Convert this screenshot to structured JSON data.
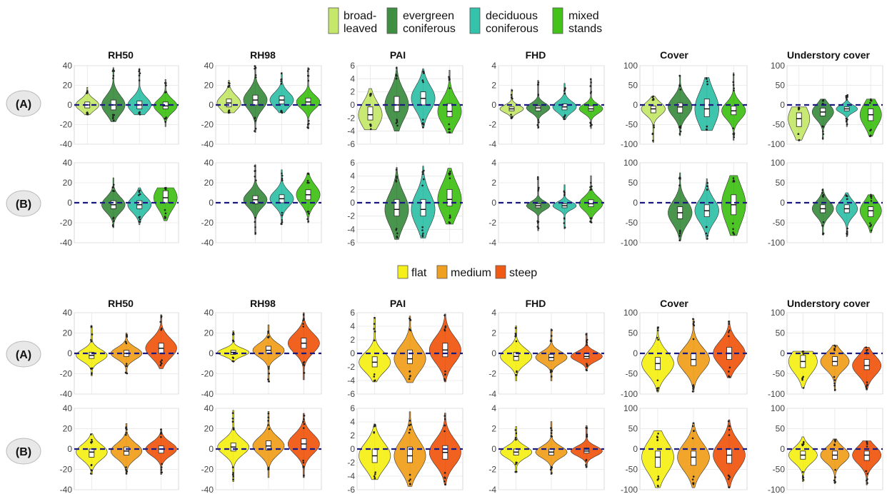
{
  "legend_top": {
    "items": [
      {
        "lines": [
          "broad-",
          "leaved"
        ],
        "color": "#c5e86c"
      },
      {
        "lines": [
          "evergreen",
          "coniferous"
        ],
        "color": "#3f8f43"
      },
      {
        "lines": [
          "deciduous",
          "coniferous"
        ],
        "color": "#35c2aa"
      },
      {
        "lines": [
          "mixed",
          "stands"
        ],
        "color": "#43c21a"
      }
    ]
  },
  "legend_bottom": {
    "items": [
      {
        "label": "flat",
        "color": "#f5f01a"
      },
      {
        "label": "medium",
        "color": "#f0a020"
      },
      {
        "label": "steep",
        "color": "#f05a14"
      }
    ]
  },
  "row_labels": [
    "(A)",
    "(B)",
    "(A)",
    "(B)"
  ],
  "metrics": [
    {
      "title": "RH50",
      "ticks": [
        "40",
        "20",
        "0",
        "-20",
        "-40"
      ],
      "ylim": [
        -40,
        40
      ]
    },
    {
      "title": "RH98",
      "ticks": [
        "40",
        "20",
        "0",
        "-20",
        "-40"
      ],
      "ylim": [
        -40,
        40
      ]
    },
    {
      "title": "PAI",
      "ticks": [
        "6",
        "4",
        "2",
        "0",
        "-2",
        "-4",
        "-6"
      ],
      "ylim": [
        -6,
        6
      ]
    },
    {
      "title": "FHD",
      "ticks": [
        "4",
        "2",
        "0",
        "-2",
        "-4"
      ],
      "ylim": [
        -4,
        4
      ]
    },
    {
      "title": "Cover",
      "ticks": [
        "100",
        "50",
        "0",
        "-50",
        "-100"
      ],
      "ylim": [
        -100,
        100
      ]
    },
    {
      "title": "Understory cover",
      "ticks": [
        "100",
        "50",
        "0",
        "-50",
        "-100"
      ],
      "ylim": [
        -100,
        100
      ]
    }
  ],
  "colors": {
    "broadleaved": "#c5e86c",
    "evergreen": "#3f8f43",
    "deciduous": "#35c2aa",
    "mixed": "#43c21a",
    "flat": "#f5f01a",
    "medium": "#f0a020",
    "steep": "#f05a14",
    "zero_line": "#1a1a7a",
    "grid": "#e6e6e6",
    "frame": "#cfcfcf"
  },
  "chart_data": {
    "type": "violin",
    "note_groups": "forest type (top) and slope class (bottom)",
    "panels": [
      {
        "row": 0,
        "group_set": "forest",
        "metrics": [
          [
            {
              "g": "broadleaved",
              "median": 0,
              "q1": -3,
              "q3": 3,
              "min": -10,
              "max": 18
            },
            {
              "g": "evergreen",
              "median": 0,
              "q1": -5,
              "q3": 5,
              "min": -17,
              "max": 38
            },
            {
              "g": "deciduous",
              "median": 0,
              "q1": -4,
              "q3": 4,
              "min": -10,
              "max": 37
            },
            {
              "g": "mixed",
              "median": -1,
              "q1": -4,
              "q3": 3,
              "min": -22,
              "max": 26
            }
          ],
          [
            {
              "g": "broadleaved",
              "median": 2,
              "q1": -2,
              "q3": 6,
              "min": -8,
              "max": 25
            },
            {
              "g": "evergreen",
              "median": 5,
              "q1": 0,
              "q3": 10,
              "min": -28,
              "max": 40
            },
            {
              "g": "deciduous",
              "median": 5,
              "q1": 1,
              "q3": 9,
              "min": -8,
              "max": 33
            },
            {
              "g": "mixed",
              "median": 3,
              "q1": 0,
              "q3": 7,
              "min": -24,
              "max": 38
            }
          ],
          [
            {
              "g": "broadleaved",
              "median": -1.5,
              "q1": -2.3,
              "q3": -0.3,
              "min": -3.8,
              "max": 2.5
            },
            {
              "g": "evergreen",
              "median": 0,
              "q1": -1,
              "q3": 1.3,
              "min": -4,
              "max": 5.8
            },
            {
              "g": "deciduous",
              "median": 1,
              "q1": 0,
              "q3": 2,
              "min": -3.5,
              "max": 5.5
            },
            {
              "g": "mixed",
              "median": -1,
              "q1": -1.8,
              "q3": 0.2,
              "min": -4.3,
              "max": 5.3
            }
          ],
          [
            {
              "g": "broadleaved",
              "median": -0.4,
              "q1": -0.6,
              "q3": -0.2,
              "min": -1.4,
              "max": 1.6
            },
            {
              "g": "evergreen",
              "median": -0.3,
              "q1": -0.6,
              "q3": -0.1,
              "min": -2.4,
              "max": 2.5
            },
            {
              "g": "deciduous",
              "median": -0.2,
              "q1": -0.5,
              "q3": 0.1,
              "min": -1.5,
              "max": 2.2
            },
            {
              "g": "mixed",
              "median": -0.4,
              "q1": -0.6,
              "q3": -0.1,
              "min": -2.4,
              "max": 2.7
            }
          ],
          [
            {
              "g": "broadleaved",
              "median": -10,
              "q1": -20,
              "q3": -3,
              "min": -95,
              "max": 22
            },
            {
              "g": "evergreen",
              "median": -5,
              "q1": -20,
              "q3": 5,
              "min": -78,
              "max": 75
            },
            {
              "g": "deciduous",
              "median": -10,
              "q1": -30,
              "q3": 15,
              "min": -65,
              "max": 70
            },
            {
              "g": "mixed",
              "median": -15,
              "q1": -25,
              "q3": -3,
              "min": -90,
              "max": 82
            }
          ],
          [
            {
              "g": "broadleaved",
              "median": -35,
              "q1": -55,
              "q3": -20,
              "min": -90,
              "max": -5
            },
            {
              "g": "evergreen",
              "median": -18,
              "q1": -28,
              "q3": -8,
              "min": -88,
              "max": 15
            },
            {
              "g": "deciduous",
              "median": -10,
              "q1": -15,
              "q3": -5,
              "min": -55,
              "max": 25
            },
            {
              "g": "mixed",
              "median": -25,
              "q1": -40,
              "q3": -10,
              "min": -80,
              "max": 15
            }
          ]
        ]
      },
      {
        "row": 1,
        "group_set": "forest",
        "metrics": [
          [
            {
              "g": "evergreen",
              "median": -2,
              "q1": -6,
              "q3": 2,
              "min": -25,
              "max": 25
            },
            {
              "g": "deciduous",
              "median": -2,
              "q1": -6,
              "q3": 2,
              "min": -22,
              "max": 15
            },
            {
              "g": "mixed",
              "median": 5,
              "q1": 0,
              "q3": 12,
              "min": -18,
              "max": 15
            }
          ],
          [
            {
              "g": "evergreen",
              "median": 3,
              "q1": -1,
              "q3": 7,
              "min": -32,
              "max": 38
            },
            {
              "g": "deciduous",
              "median": 4,
              "q1": 0,
              "q3": 8,
              "min": -22,
              "max": 33
            },
            {
              "g": "mixed",
              "median": 8,
              "q1": 3,
              "q3": 13,
              "min": -20,
              "max": 30
            }
          ],
          [
            {
              "g": "evergreen",
              "median": -1,
              "q1": -2,
              "q3": 0.5,
              "min": -5.5,
              "max": 5.3
            },
            {
              "g": "deciduous",
              "median": -1,
              "q1": -2,
              "q3": 0.5,
              "min": -5.3,
              "max": 5.5
            },
            {
              "g": "mixed",
              "median": 0.5,
              "q1": -0.5,
              "q3": 2,
              "min": -3.2,
              "max": 5.2
            }
          ],
          [
            {
              "g": "evergreen",
              "median": -0.3,
              "q1": -0.5,
              "q3": -0.1,
              "min": -2.8,
              "max": 2.6
            },
            {
              "g": "deciduous",
              "median": -0.3,
              "q1": -0.5,
              "q3": -0.1,
              "min": -2.6,
              "max": 1.8
            },
            {
              "g": "mixed",
              "median": -0.1,
              "q1": -0.4,
              "q3": 0.3,
              "min": -2,
              "max": 2.7
            }
          ],
          [
            {
              "g": "evergreen",
              "median": -25,
              "q1": -40,
              "q3": -10,
              "min": -95,
              "max": 75
            },
            {
              "g": "deciduous",
              "median": -20,
              "q1": -35,
              "q3": -5,
              "min": -92,
              "max": 60
            },
            {
              "g": "mixed",
              "median": -5,
              "q1": -30,
              "q3": 20,
              "min": -82,
              "max": 68
            }
          ],
          [
            {
              "g": "evergreen",
              "median": -15,
              "q1": -25,
              "q3": -5,
              "min": -80,
              "max": 35
            },
            {
              "g": "deciduous",
              "median": -15,
              "q1": -25,
              "q3": -5,
              "min": -85,
              "max": 25
            },
            {
              "g": "mixed",
              "median": -20,
              "q1": -35,
              "q3": -10,
              "min": -75,
              "max": 20
            }
          ]
        ]
      },
      {
        "row": 2,
        "group_set": "slope",
        "metrics": [
          [
            {
              "g": "flat",
              "median": -2,
              "q1": -5,
              "q3": 1,
              "min": -22,
              "max": 27
            },
            {
              "g": "medium",
              "median": 0,
              "q1": -3,
              "q3": 3,
              "min": -20,
              "max": 20
            },
            {
              "g": "steep",
              "median": 5,
              "q1": 0,
              "q3": 10,
              "min": -15,
              "max": 38
            }
          ],
          [
            {
              "g": "flat",
              "median": 1,
              "q1": -1,
              "q3": 3,
              "min": -8,
              "max": 22
            },
            {
              "g": "medium",
              "median": 3,
              "q1": 0,
              "q3": 7,
              "min": -28,
              "max": 28
            },
            {
              "g": "steep",
              "median": 10,
              "q1": 5,
              "q3": 15,
              "min": -26,
              "max": 40
            }
          ],
          [
            {
              "g": "flat",
              "median": -1.3,
              "q1": -2,
              "q3": -0.5,
              "min": -4.2,
              "max": 5.3
            },
            {
              "g": "medium",
              "median": -0.8,
              "q1": -1.5,
              "q3": 0.5,
              "min": -4.3,
              "max": 5.5
            },
            {
              "g": "steep",
              "median": 0.5,
              "q1": -0.5,
              "q3": 1.5,
              "min": -4.2,
              "max": 5.8
            }
          ],
          [
            {
              "g": "flat",
              "median": -0.3,
              "q1": -0.7,
              "q3": 0.1,
              "min": -2.7,
              "max": 2.7
            },
            {
              "g": "medium",
              "median": -0.4,
              "q1": -0.7,
              "q3": -0.1,
              "min": -2.7,
              "max": 2.4
            },
            {
              "g": "steep",
              "median": -0.3,
              "q1": -0.5,
              "q3": 0,
              "min": -1.7,
              "max": 2
            }
          ],
          [
            {
              "g": "flat",
              "median": -25,
              "q1": -40,
              "q3": -10,
              "min": -95,
              "max": 65
            },
            {
              "g": "medium",
              "median": -15,
              "q1": -30,
              "q3": 0,
              "min": -95,
              "max": 85
            },
            {
              "g": "steep",
              "median": 0,
              "q1": -15,
              "q3": 15,
              "min": -60,
              "max": 80
            }
          ],
          [
            {
              "g": "flat",
              "median": -20,
              "q1": -35,
              "q3": -5,
              "min": -85,
              "max": 5
            },
            {
              "g": "medium",
              "median": -20,
              "q1": -30,
              "q3": -8,
              "min": -92,
              "max": 20
            },
            {
              "g": "steep",
              "median": -30,
              "q1": -40,
              "q3": -15,
              "min": -90,
              "max": 15
            }
          ]
        ]
      },
      {
        "row": 3,
        "group_set": "slope",
        "metrics": [
          [
            {
              "g": "flat",
              "median": -3,
              "q1": -8,
              "q3": 0,
              "min": -25,
              "max": 15
            },
            {
              "g": "medium",
              "median": -2,
              "q1": -6,
              "q3": 2,
              "min": -25,
              "max": 25
            },
            {
              "g": "steep",
              "median": 0,
              "q1": -4,
              "q3": 3,
              "min": -25,
              "max": 20
            }
          ],
          [
            {
              "g": "flat",
              "median": 2,
              "q1": -2,
              "q3": 6,
              "min": -32,
              "max": 38
            },
            {
              "g": "medium",
              "median": 3,
              "q1": -1,
              "q3": 8,
              "min": -28,
              "max": 37
            },
            {
              "g": "steep",
              "median": 5,
              "q1": 0,
              "q3": 10,
              "min": -28,
              "max": 35
            }
          ],
          [
            {
              "g": "flat",
              "median": -1,
              "q1": -2,
              "q3": 0,
              "min": -4.5,
              "max": 3.7
            },
            {
              "g": "medium",
              "median": -1,
              "q1": -2,
              "q3": 0.3,
              "min": -5.5,
              "max": 5.5
            },
            {
              "g": "steep",
              "median": -0.5,
              "q1": -1.5,
              "q3": 0.5,
              "min": -5.3,
              "max": 5.3
            }
          ],
          [
            {
              "g": "flat",
              "median": -0.3,
              "q1": -0.6,
              "q3": 0,
              "min": -2.3,
              "max": 2.2
            },
            {
              "g": "medium",
              "median": -0.3,
              "q1": -0.6,
              "q3": 0,
              "min": -2.5,
              "max": 2.7
            },
            {
              "g": "steep",
              "median": -0.2,
              "q1": -0.4,
              "q3": 0.1,
              "min": -1.8,
              "max": 2.3
            }
          ],
          [
            {
              "g": "flat",
              "median": -20,
              "q1": -45,
              "q3": -5,
              "min": -95,
              "max": 45
            },
            {
              "g": "medium",
              "median": -20,
              "q1": -40,
              "q3": -5,
              "min": -95,
              "max": 65
            },
            {
              "g": "steep",
              "median": -15,
              "q1": -35,
              "q3": 0,
              "min": -95,
              "max": 72
            }
          ],
          [
            {
              "g": "flat",
              "median": -15,
              "q1": -25,
              "q3": -5,
              "min": -80,
              "max": 30
            },
            {
              "g": "medium",
              "median": -15,
              "q1": -25,
              "q3": -5,
              "min": -85,
              "max": 25
            },
            {
              "g": "steep",
              "median": -15,
              "q1": -28,
              "q3": -5,
              "min": -88,
              "max": 20
            }
          ]
        ]
      }
    ]
  }
}
